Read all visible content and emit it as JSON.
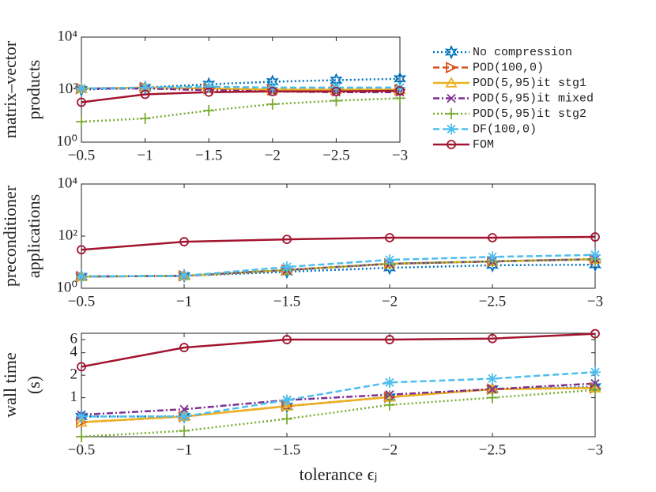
{
  "chart_data": [
    {
      "type": "line",
      "ylabel": [
        "matrix–vector",
        "products"
      ],
      "log_y": true,
      "x": [
        -0.5,
        -1,
        -1.5,
        -2,
        -2.5,
        -3
      ],
      "xlim": [
        -0.5,
        -3
      ],
      "xticks": [
        {
          "value": -0.5,
          "label": "−0.5"
        },
        {
          "value": -1,
          "label": "−1"
        },
        {
          "value": -1.5,
          "label": "−1.5"
        },
        {
          "value": -2,
          "label": "−2"
        },
        {
          "value": -2.5,
          "label": "−2.5"
        },
        {
          "value": -3,
          "label": "−3"
        }
      ],
      "ylim": [
        1,
        10000
      ],
      "yticks": [
        {
          "value": 1,
          "label": "10⁰"
        },
        {
          "value": 100,
          "label": "10²"
        },
        {
          "value": 10000,
          "label": "10⁴"
        }
      ],
      "legend": "outside-right",
      "series": [
        {
          "name": "No compression",
          "color": "#0072bd",
          "marker": "hexagram",
          "dash": "dotted",
          "values": [
            100,
            120,
            160,
            200,
            230,
            260
          ]
        },
        {
          "name": "POD(100,0)",
          "color": "#d95319",
          "marker": "triangle-right",
          "dash": "dashed",
          "values": [
            110,
            120,
            110,
            100,
            100,
            100
          ]
        },
        {
          "name": "POD(5,95)it stg1",
          "color": "#edb120",
          "marker": "triangle-up",
          "dash": "solid",
          "values": [
            110,
            120,
            110,
            100,
            100,
            100
          ]
        },
        {
          "name": "POD(5,95)it mixed",
          "color": "#7e2f8e",
          "marker": "x",
          "dash": "dashdot",
          "values": [
            110,
            110,
            95,
            85,
            80,
            80
          ]
        },
        {
          "name": "POD(5,95)it stg2",
          "color": "#77ac30",
          "marker": "plus",
          "dash": "dotted",
          "values": [
            6,
            8,
            16,
            28,
            38,
            47
          ]
        },
        {
          "name": "DF(100,0)",
          "color": "#4dbeee",
          "marker": "asterisk",
          "dash": "dashed",
          "values": [
            110,
            120,
            130,
            120,
            120,
            120
          ]
        },
        {
          "name": "FOM",
          "color": "#a2142f",
          "marker": "circle",
          "dash": "solid",
          "values": [
            33,
            66,
            80,
            85,
            85,
            90
          ]
        }
      ]
    },
    {
      "type": "line",
      "ylabel": [
        "preconditioner",
        "applications"
      ],
      "log_y": true,
      "x": [
        -0.5,
        -1,
        -1.5,
        -2,
        -2.5,
        -3
      ],
      "xlim": [
        -0.5,
        -3
      ],
      "xticks": [
        {
          "value": -0.5,
          "label": "−0.5"
        },
        {
          "value": -1,
          "label": "−1"
        },
        {
          "value": -1.5,
          "label": "−1.5"
        },
        {
          "value": -2,
          "label": "−2"
        },
        {
          "value": -2.5,
          "label": "−2.5"
        },
        {
          "value": -3,
          "label": "−3"
        }
      ],
      "ylim": [
        1,
        10000
      ],
      "yticks": [
        {
          "value": 1,
          "label": "10⁰"
        },
        {
          "value": 100,
          "label": "10²"
        },
        {
          "value": 10000,
          "label": "10⁴"
        }
      ],
      "series": [
        {
          "color": "#0072bd",
          "marker": "hexagram",
          "dash": "dotted",
          "values": [
            2.8,
            3,
            4.3,
            6.1,
            7.6,
            8
          ]
        },
        {
          "color": "#d95319",
          "marker": "triangle-right",
          "dash": "dashed",
          "values": [
            2.8,
            3,
            5,
            8.7,
            10.7,
            13
          ]
        },
        {
          "color": "#edb120",
          "marker": "triangle-up",
          "dash": "solid",
          "values": [
            2.8,
            3,
            5,
            8.7,
            10.7,
            13
          ]
        },
        {
          "color": "#7e2f8e",
          "marker": "x",
          "dash": "dashdot",
          "values": [
            2.8,
            3,
            5,
            8.7,
            10.7,
            13
          ]
        },
        {
          "color": "#77ac30",
          "marker": "plus",
          "dash": "dotted",
          "values": [
            2.8,
            3,
            5,
            8.7,
            10.7,
            13
          ]
        },
        {
          "color": "#4dbeee",
          "marker": "asterisk",
          "dash": "dashed",
          "values": [
            2.8,
            3,
            6.6,
            12.3,
            16,
            19
          ]
        },
        {
          "color": "#a2142f",
          "marker": "circle",
          "dash": "solid",
          "values": [
            30,
            61,
            75,
            87,
            87,
            93
          ]
        }
      ]
    },
    {
      "type": "line",
      "ylabel": [
        "wall time",
        "(s)"
      ],
      "xlabel": "tolerance ϵⱼ",
      "log_y": true,
      "x": [
        -0.5,
        -1,
        -1.5,
        -2,
        -2.5,
        -3
      ],
      "xlim": [
        -0.5,
        -3
      ],
      "xticks": [
        {
          "value": -0.5,
          "label": "−0.5"
        },
        {
          "value": -1,
          "label": "−1"
        },
        {
          "value": -1.5,
          "label": "−1.5"
        },
        {
          "value": -2,
          "label": "−2"
        },
        {
          "value": -2.5,
          "label": "−2.5"
        },
        {
          "value": -3,
          "label": "−3"
        }
      ],
      "ylim": [
        0.3,
        7.3
      ],
      "yticks": [
        1,
        2,
        4,
        6
      ],
      "series": [
        {
          "color": "#0072bd",
          "marker": "hexagram",
          "dash": "dotted",
          "values": [
            0.56,
            0.56,
            0.77,
            1.02,
            1.3,
            1.4
          ]
        },
        {
          "color": "#d95319",
          "marker": "triangle-right",
          "dash": "dashed",
          "values": [
            0.47,
            0.56,
            0.77,
            1.02,
            1.3,
            1.35
          ]
        },
        {
          "color": "#edb120",
          "marker": "triangle-up",
          "dash": "solid",
          "values": [
            0.47,
            0.56,
            0.77,
            1.02,
            1.3,
            1.35
          ]
        },
        {
          "color": "#7e2f8e",
          "marker": "x",
          "dash": "dashdot",
          "values": [
            0.59,
            0.7,
            0.93,
            1.1,
            1.3,
            1.55
          ]
        },
        {
          "color": "#77ac30",
          "marker": "plus",
          "dash": "dotted",
          "values": [
            0.3,
            0.36,
            0.52,
            0.8,
            1.0,
            1.27
          ]
        },
        {
          "color": "#4dbeee",
          "marker": "asterisk",
          "dash": "dashed",
          "values": [
            0.56,
            0.56,
            0.93,
            1.6,
            1.8,
            2.2
          ]
        },
        {
          "color": "#a2142f",
          "marker": "circle",
          "dash": "solid",
          "values": [
            2.6,
            4.7,
            6,
            6,
            6.2,
            7.2
          ]
        }
      ]
    }
  ]
}
